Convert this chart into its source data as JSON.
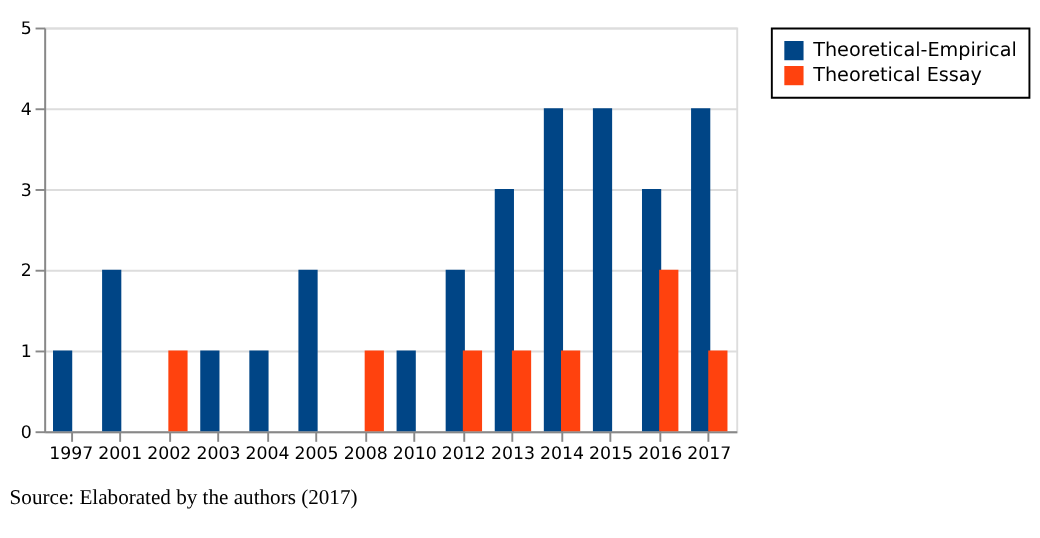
{
  "chart_data": {
    "type": "bar",
    "categories": [
      "1997",
      "2001",
      "2002",
      "2003",
      "2004",
      "2005",
      "2008",
      "2010",
      "2012",
      "2013",
      "2014",
      "2015",
      "2016",
      "2017"
    ],
    "series": [
      {
        "name": "Theoretical-Empirical",
        "color": "#004586",
        "values": [
          1,
          2,
          0,
          1,
          1,
          2,
          0,
          1,
          2,
          3,
          4,
          4,
          3,
          4
        ]
      },
      {
        "name": "Theoretical Essay",
        "color": "#ff420e",
        "values": [
          0,
          0,
          1,
          0,
          0,
          0,
          1,
          0,
          1,
          1,
          1,
          0,
          2,
          1
        ]
      }
    ],
    "ylim": [
      0,
      5
    ],
    "yticks": [
      0,
      1,
      2,
      3,
      4,
      5
    ],
    "grid": "y",
    "legend": "right",
    "annotations": [
      "Source: Elaborated by the authors (2017)"
    ]
  }
}
